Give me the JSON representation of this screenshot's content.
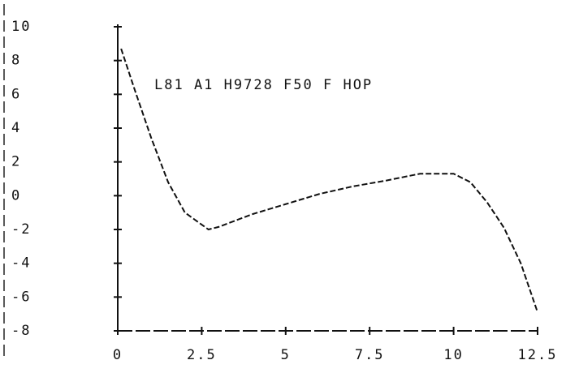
{
  "chart_data": {
    "type": "line",
    "annotation": "L81 A1 H9728 F50 F HOP",
    "x": [
      0.1,
      0.5,
      1,
      1.5,
      2,
      2.7,
      3,
      4,
      5,
      6,
      7,
      8,
      9,
      9.5,
      10,
      10.5,
      11,
      11.5,
      12,
      12.5
    ],
    "series": [
      {
        "color": "#111111",
        "values": [
          8.7,
          6.3,
          3.4,
          0.8,
          -1.0,
          -2.0,
          -1.85,
          -1.1,
          -0.5,
          0.1,
          0.55,
          0.9,
          1.3,
          1.3,
          1.3,
          0.8,
          -0.4,
          -1.9,
          -4.0,
          -6.9
        ]
      }
    ],
    "xlim": [
      0,
      12.5
    ],
    "xticks": [
      0,
      2.5,
      5,
      7.5,
      10,
      12.5
    ],
    "ylim": [
      -8,
      10
    ],
    "yticks": [
      10,
      8,
      6,
      4,
      2,
      0,
      -2,
      -4,
      -6,
      -8
    ]
  }
}
